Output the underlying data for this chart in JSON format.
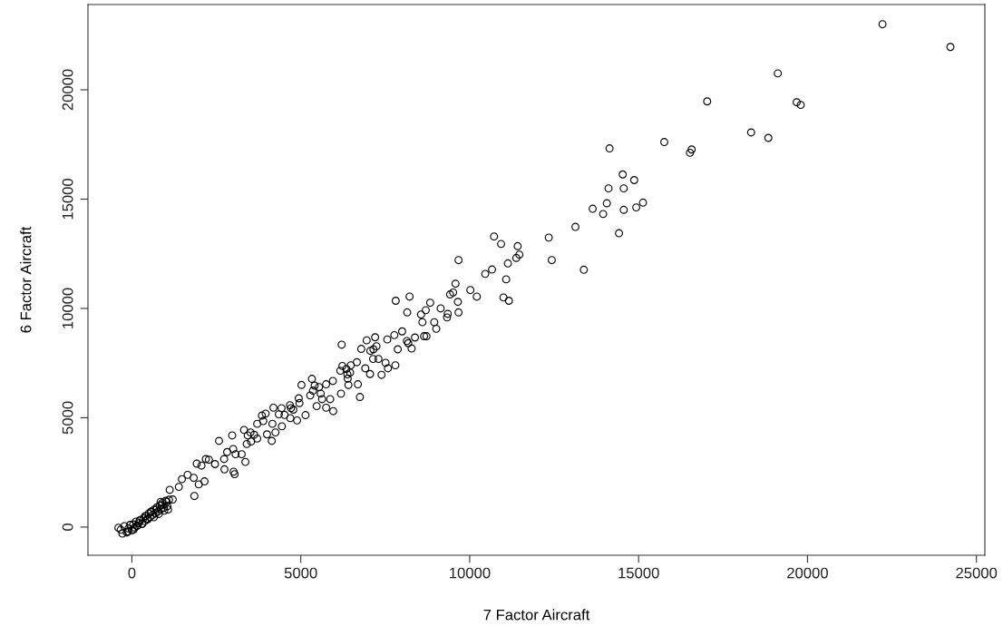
{
  "chart_data": {
    "type": "scatter",
    "xlabel": "7 Factor Aircraft",
    "ylabel": "6 Factor Aircraft",
    "xlim": [
      -1300,
      25250
    ],
    "ylim": [
      -1290,
      23900
    ],
    "xticks": [
      0,
      5000,
      10000,
      15000,
      20000,
      25000
    ],
    "yticks": [
      0,
      5000,
      10000,
      15000,
      20000
    ],
    "grid": false,
    "marker": "circle",
    "color": "#000000",
    "x": [
      22220,
      24230,
      19120,
      19680,
      19800,
      18330,
      18840,
      17030,
      15760,
      16570,
      16520,
      14140,
      14530,
      14870,
      14110,
      14560,
      14060,
      13640,
      13950,
      14560,
      14930,
      15130,
      14420,
      13130,
      12340,
      12430,
      13380,
      10720,
      10930,
      11420,
      11470,
      11380,
      11130,
      9670,
      10660,
      10460,
      11080,
      11000,
      11160,
      10020,
      10210,
      9580,
      9510,
      9420,
      9650,
      9670,
      7810,
      8220,
      8150,
      8830,
      8700,
      8560,
      9140,
      9350,
      9330,
      8600,
      8950,
      9010,
      8000,
      7770,
      7560,
      8380,
      8650,
      8720,
      8140,
      8180,
      8280,
      7870,
      7200,
      6950,
      6790,
      7150,
      7060,
      7240,
      7300,
      7140,
      7510,
      7800,
      7580,
      7390,
      6660,
      6480,
      6910,
      7050,
      6460,
      6350,
      6380,
      6690,
      6410,
      6210,
      6230,
      6170,
      6190,
      6750,
      6390,
      5330,
      5020,
      5410,
      5540,
      5750,
      5950,
      5360,
      5590,
      5280,
      5630,
      5870,
      5470,
      5750,
      5960,
      5140,
      4940,
      4960,
      4680,
      4710,
      4780,
      4890,
      4690,
      4430,
      4190,
      4520,
      4350,
      3960,
      3850,
      4160,
      4440,
      3890,
      3710,
      3510,
      3320,
      3430,
      3620,
      3710,
      3530,
      4000,
      4140,
      4250,
      3400,
      2970,
      2580,
      3000,
      2820,
      2730,
      3070,
      3250,
      3360,
      2460,
      2280,
      2190,
      1920,
      2060,
      2740,
      3010,
      3040,
      2150,
      1980,
      1830,
      1650,
      1480,
      1850,
      1390,
      1120,
      1210,
      1070,
      850,
      -400,
      -330,
      -220,
      -150,
      -100,
      -50,
      0,
      40,
      80,
      120,
      160,
      200,
      250,
      300,
      340,
      380,
      420,
      460,
      500,
      540,
      580,
      620,
      660,
      700,
      740,
      780,
      820,
      860,
      900,
      950,
      1000,
      1050,
      1100,
      -280,
      -120,
      60,
      150,
      230,
      310,
      390,
      470,
      560,
      650,
      720,
      800,
      880,
      960,
      1030
    ],
    "values": [
      23000,
      21960,
      20750,
      19430,
      19310,
      18050,
      17800,
      19470,
      17610,
      17270,
      17120,
      17320,
      16130,
      15870,
      15490,
      15490,
      14810,
      14560,
      14320,
      14510,
      14620,
      14840,
      13440,
      13730,
      13240,
      12210,
      11770,
      13290,
      12950,
      12850,
      12460,
      12310,
      12060,
      12210,
      11780,
      11580,
      11330,
      10500,
      10350,
      10840,
      10540,
      11130,
      10730,
      10640,
      10300,
      9820,
      10350,
      10540,
      9820,
      10260,
      9920,
      9720,
      10000,
      9750,
      9590,
      9370,
      9370,
      9070,
      8950,
      8780,
      8580,
      8670,
      8730,
      8730,
      8510,
      8410,
      8170,
      8130,
      8680,
      8540,
      8150,
      8130,
      8060,
      8270,
      7690,
      7690,
      7510,
      7400,
      7260,
      6960,
      7540,
      7400,
      7260,
      7000,
      7070,
      7230,
      6980,
      6530,
      6500,
      8340,
      7370,
      7150,
      6100,
      5950,
      6790,
      6780,
      6500,
      6470,
      6400,
      6530,
      6680,
      6240,
      6100,
      6020,
      5850,
      5850,
      5530,
      5460,
      5300,
      5120,
      5890,
      5670,
      5570,
      5440,
      5370,
      4880,
      4980,
      5440,
      5460,
      5130,
      5160,
      5190,
      5100,
      4720,
      4610,
      4850,
      4720,
      4330,
      4440,
      4190,
      4220,
      4050,
      3910,
      4240,
      3940,
      4330,
      3800,
      4190,
      3940,
      3570,
      3430,
      3110,
      3330,
      3330,
      2980,
      2880,
      3080,
      3110,
      2900,
      2810,
      2640,
      2530,
      2420,
      2090,
      1950,
      2250,
      2390,
      2190,
      1420,
      1840,
      1700,
      1260,
      800,
      1150,
      -30,
      -120,
      40,
      -250,
      -60,
      100,
      -150,
      120,
      -20,
      250,
      60,
      180,
      320,
      150,
      400,
      270,
      500,
      380,
      620,
      460,
      700,
      560,
      800,
      640,
      900,
      720,
      980,
      820,
      1100,
      880,
      1200,
      960,
      1250,
      -300,
      -200,
      -100,
      50,
      300,
      150,
      500,
      350,
      700,
      450,
      800,
      600,
      1000,
      750,
      1150
    ]
  }
}
